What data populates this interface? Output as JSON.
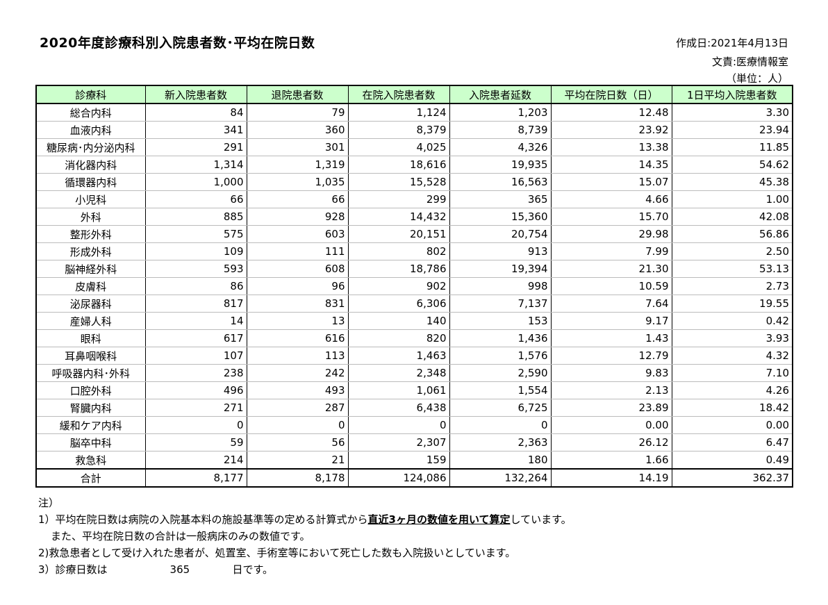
{
  "header": {
    "title": "2020年度診療科別入院患者数･平均在院日数",
    "created": "作成日:2021年4月13日",
    "author": "文責:医療情報室",
    "unit": "（単位：人）"
  },
  "table": {
    "columns": [
      "診療科",
      "新入院患者数",
      "退院患者数",
      "在院入院患者数",
      "入院患者延数",
      "平均在院日数（日）",
      "1日平均入院患者数"
    ],
    "rows": [
      [
        "総合内科",
        "84",
        "79",
        "1,124",
        "1,203",
        "12.48",
        "3.30"
      ],
      [
        "血液内科",
        "341",
        "360",
        "8,379",
        "8,739",
        "23.92",
        "23.94"
      ],
      [
        "糖尿病･内分泌内科",
        "291",
        "301",
        "4,025",
        "4,326",
        "13.38",
        "11.85"
      ],
      [
        "消化器内科",
        "1,314",
        "1,319",
        "18,616",
        "19,935",
        "14.35",
        "54.62"
      ],
      [
        "循環器内科",
        "1,000",
        "1,035",
        "15,528",
        "16,563",
        "15.07",
        "45.38"
      ],
      [
        "小児科",
        "66",
        "66",
        "299",
        "365",
        "4.66",
        "1.00"
      ],
      [
        "外科",
        "885",
        "928",
        "14,432",
        "15,360",
        "15.70",
        "42.08"
      ],
      [
        "整形外科",
        "575",
        "603",
        "20,151",
        "20,754",
        "29.98",
        "56.86"
      ],
      [
        "形成外科",
        "109",
        "111",
        "802",
        "913",
        "7.99",
        "2.50"
      ],
      [
        "脳神経外科",
        "593",
        "608",
        "18,786",
        "19,394",
        "21.30",
        "53.13"
      ],
      [
        "皮膚科",
        "86",
        "96",
        "902",
        "998",
        "10.59",
        "2.73"
      ],
      [
        "泌尿器科",
        "817",
        "831",
        "6,306",
        "7,137",
        "7.64",
        "19.55"
      ],
      [
        "産婦人科",
        "14",
        "13",
        "140",
        "153",
        "9.17",
        "0.42"
      ],
      [
        "眼科",
        "617",
        "616",
        "820",
        "1,436",
        "1.43",
        "3.93"
      ],
      [
        "耳鼻咽喉科",
        "107",
        "113",
        "1,463",
        "1,576",
        "12.79",
        "4.32"
      ],
      [
        "呼吸器内科･外科",
        "238",
        "242",
        "2,348",
        "2,590",
        "9.83",
        "7.10"
      ],
      [
        "口腔外科",
        "496",
        "493",
        "1,061",
        "1,554",
        "2.13",
        "4.26"
      ],
      [
        "腎臓内科",
        "271",
        "287",
        "6,438",
        "6,725",
        "23.89",
        "18.42"
      ],
      [
        "緩和ケア内科",
        "0",
        "0",
        "0",
        "0",
        "0.00",
        "0.00"
      ],
      [
        "脳卒中科",
        "59",
        "56",
        "2,307",
        "2,363",
        "26.12",
        "6.47"
      ],
      [
        "救急科",
        "214",
        "21",
        "159",
        "180",
        "1.66",
        "0.49"
      ]
    ],
    "total": [
      "合計",
      "8,177",
      "8,178",
      "124,086",
      "132,264",
      "14.19",
      "362.37"
    ],
    "header_bg": "#ccffcc"
  },
  "notes": {
    "heading": "注）",
    "n1_before": "1）平均在院日数は病院の入院基本料の施設基準等の定める計算式から",
    "n1_emph": "直近3ヶ月の数値を用いて算定",
    "n1_after": "しています。",
    "n1_cont": "また、平均在院日数の合計は一般病床のみの数値です。",
    "n2": "2)救急患者として受け入れた患者が、処置室、手術室等において死亡した数も入院扱いとしています。",
    "n3_label": "3）診療日数は",
    "n3_value": "365",
    "n3_suffix": "日です。"
  }
}
